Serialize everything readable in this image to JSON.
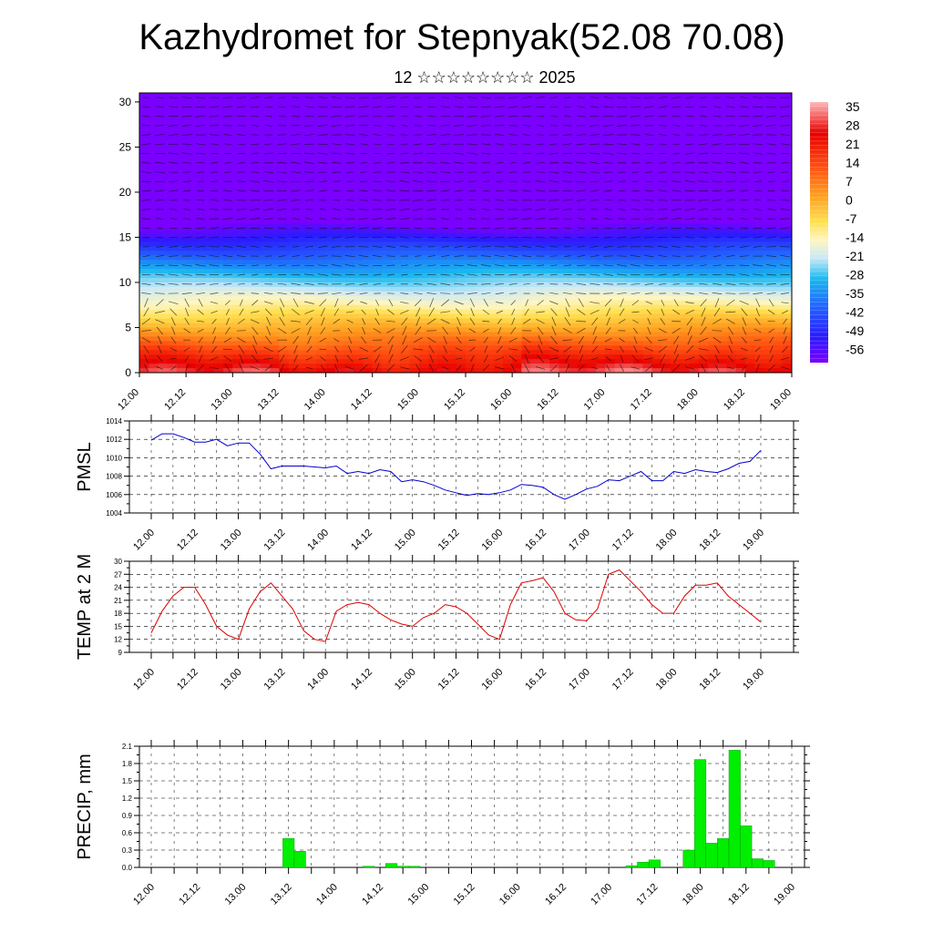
{
  "title": "Kazhydromet for Stepnyak(52.08 70.08)",
  "subtitle": "12 ☆☆☆☆☆☆☆☆ 2025",
  "colors": {
    "pmsl_line": "#0000cc",
    "temp_line": "#dd0000",
    "precip_bar": "#00ee00",
    "bar_edge": "#008800"
  },
  "time_ticks": [
    "12.00",
    "12.12",
    "13.00",
    "13.12",
    "14.00",
    "14.12",
    "15.00",
    "15.12",
    "16.00",
    "16.12",
    "17.00",
    "17.12",
    "18.00",
    "18.12",
    "19.00"
  ],
  "chart_data": [
    {
      "type": "heatmap",
      "name": "cross-section",
      "x": "time 12.00 to 19.00 (hourly)",
      "y_ticks": [
        0,
        5,
        10,
        15,
        20,
        25,
        30
      ],
      "ylim": [
        0,
        31
      ],
      "colorbar_labels": [
        "35",
        "28",
        "21",
        "14",
        "7",
        "0",
        "-7",
        "-14",
        "-21",
        "-28",
        "-35",
        "-42",
        "-49",
        "-56"
      ],
      "colorbar_range": [
        -60,
        38
      ],
      "overlay": "wind arrows"
    },
    {
      "type": "line",
      "ylabel": "PMSL",
      "ylim": [
        1004,
        1014
      ],
      "y_ticks": [
        1004,
        1006,
        1008,
        1010,
        1012,
        1014
      ],
      "x_hours": [
        0,
        3,
        6,
        9,
        12,
        15,
        18,
        21,
        24,
        27,
        30,
        33,
        36,
        39,
        42,
        45,
        48,
        51,
        54,
        57,
        60,
        63,
        66,
        69,
        72,
        75,
        78,
        81,
        84,
        87,
        90,
        93,
        96,
        99,
        102,
        105,
        108,
        111,
        114,
        117,
        120,
        123,
        126,
        129,
        132,
        135,
        138,
        141,
        144,
        147,
        150,
        153,
        156,
        159,
        162,
        165,
        168
      ],
      "values": [
        1011.9,
        1012.6,
        1012.6,
        1012.2,
        1011.7,
        1011.7,
        1012.0,
        1011.3,
        1011.6,
        1011.6,
        1010.4,
        1008.8,
        1009.1,
        1009.1,
        1009.1,
        1009.0,
        1008.9,
        1009.1,
        1008.3,
        1008.5,
        1008.3,
        1008.7,
        1008.5,
        1007.4,
        1007.6,
        1007.4,
        1007.0,
        1006.5,
        1006.2,
        1005.9,
        1006.1,
        1006.0,
        1006.2,
        1006.5,
        1007.1,
        1007.0,
        1006.8,
        1006.0,
        1005.5,
        1006.0,
        1006.6,
        1006.9,
        1007.6,
        1007.5,
        1008.0,
        1008.5,
        1007.5,
        1007.5,
        1008.5,
        1008.3,
        1008.7,
        1008.5,
        1008.4,
        1008.8,
        1009.4,
        1009.6,
        1010.8
      ]
    },
    {
      "type": "line",
      "ylabel": "TEMP at 2 M",
      "ylim": [
        9,
        30
      ],
      "y_ticks": [
        9,
        12,
        15,
        18,
        21,
        24,
        27,
        30
      ],
      "x_hours": [
        0,
        3,
        6,
        9,
        12,
        15,
        18,
        21,
        24,
        27,
        30,
        33,
        36,
        39,
        42,
        45,
        48,
        51,
        54,
        57,
        60,
        63,
        66,
        69,
        72,
        75,
        78,
        81,
        84,
        87,
        90,
        93,
        96,
        99,
        102,
        105,
        108,
        111,
        114,
        117,
        120,
        123,
        126,
        129,
        132,
        135,
        138,
        141,
        144,
        147,
        150,
        153,
        156,
        159,
        162,
        165,
        168
      ],
      "values": [
        13.5,
        18.5,
        22,
        24,
        24,
        20,
        15,
        13,
        12,
        19,
        23,
        25,
        22,
        19,
        14,
        12,
        11.5,
        18.5,
        20,
        20.5,
        20,
        18,
        16.5,
        15.5,
        15,
        17,
        18,
        20,
        19.5,
        18,
        15.5,
        13,
        12,
        20,
        25,
        25.5,
        26.2,
        23,
        18,
        16.5,
        16.3,
        19,
        27,
        28,
        25.5,
        23,
        20,
        18,
        18,
        22,
        24.5,
        24.5,
        25,
        22,
        20,
        18,
        16
      ]
    },
    {
      "type": "bar",
      "ylabel": "PRECIP, mm",
      "ylim": [
        0,
        2.1
      ],
      "y_ticks": [
        "0.0",
        "0.3",
        "0.6",
        "0.9",
        "1.2",
        "1.5",
        "1.8",
        "2.1"
      ],
      "bars": [
        {
          "hour": 36,
          "value": 0.5
        },
        {
          "hour": 39,
          "value": 0.28
        },
        {
          "hour": 57,
          "value": 0.02
        },
        {
          "hour": 63,
          "value": 0.07
        },
        {
          "hour": 66,
          "value": 0.02
        },
        {
          "hour": 69,
          "value": 0.02
        },
        {
          "hour": 126,
          "value": 0.03
        },
        {
          "hour": 129,
          "value": 0.09
        },
        {
          "hour": 132,
          "value": 0.13
        },
        {
          "hour": 141,
          "value": 0.3
        },
        {
          "hour": 144,
          "value": 1.87
        },
        {
          "hour": 147,
          "value": 0.42
        },
        {
          "hour": 150,
          "value": 0.5
        },
        {
          "hour": 153,
          "value": 2.03
        },
        {
          "hour": 156,
          "value": 0.72
        },
        {
          "hour": 159,
          "value": 0.15
        },
        {
          "hour": 162,
          "value": 0.12
        }
      ]
    }
  ]
}
